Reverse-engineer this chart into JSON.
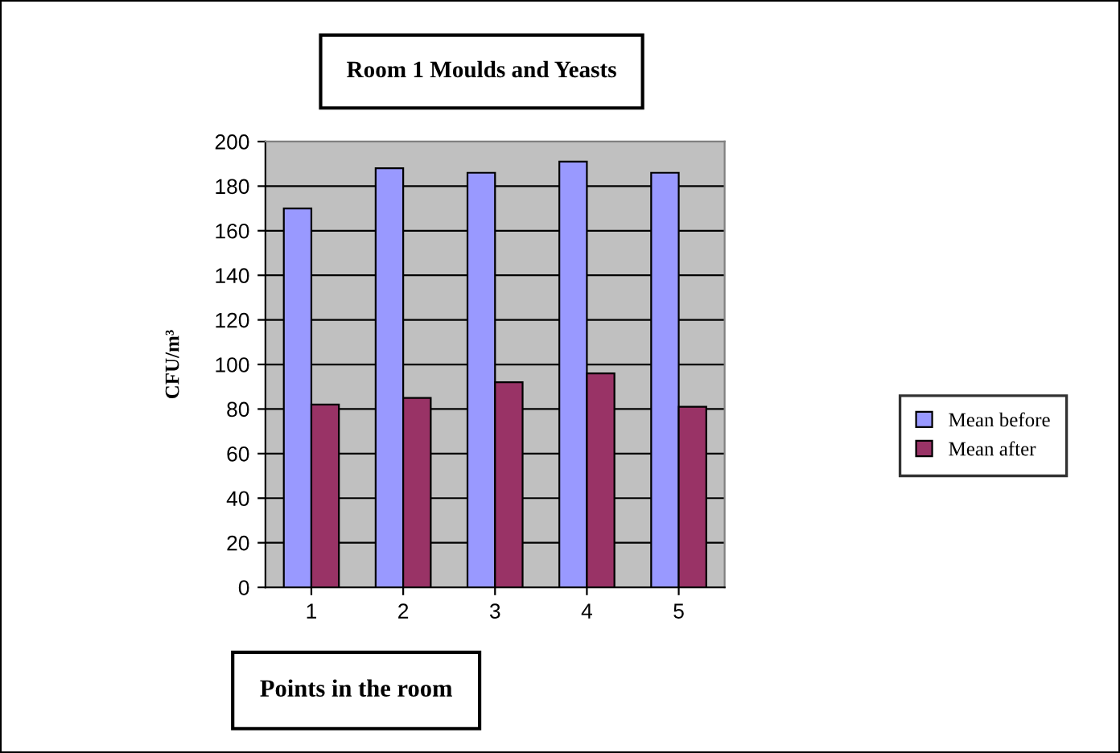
{
  "chart_data": {
    "type": "bar",
    "title": "Room 1 Moulds and Yeasts",
    "xlabel": "Points in the room",
    "ylabel": "CFU/m³",
    "categories": [
      "1",
      "2",
      "3",
      "4",
      "5"
    ],
    "series": [
      {
        "name": "Mean before",
        "color": "#9999ff",
        "values": [
          170,
          188,
          186,
          191,
          186
        ]
      },
      {
        "name": "Mean after",
        "color": "#993366",
        "values": [
          82,
          85,
          92,
          96,
          81
        ]
      }
    ],
    "ylim": [
      0,
      200
    ],
    "yticks": [
      0,
      20,
      40,
      60,
      80,
      100,
      120,
      140,
      160,
      180,
      200
    ],
    "grid": "y",
    "legend": "right"
  }
}
